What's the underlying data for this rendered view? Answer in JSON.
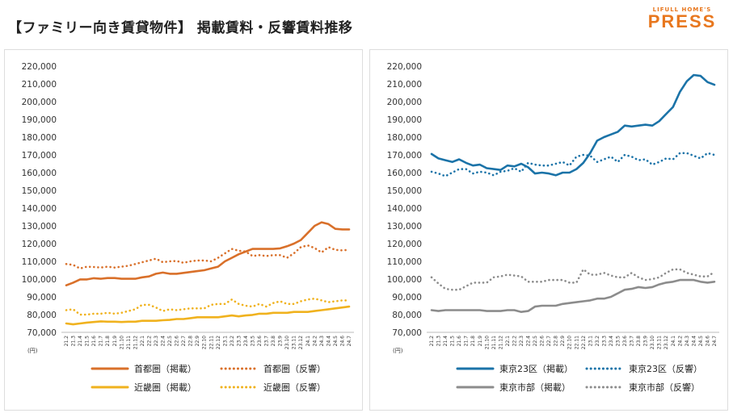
{
  "header": {
    "title": "【ファミリー向き賃貸物件】 掲載賃料・反響賃料推移",
    "logo_top": "LIFULL HOME'S",
    "logo_main": "PRESS"
  },
  "colors": {
    "shutoken": "#d9702a",
    "kinki": "#f0b21e",
    "tokyo23": "#1b73a8",
    "tokyoshi": "#8c8c8c",
    "logo": "#e8771e"
  },
  "chart_data": [
    {
      "type": "line",
      "unit": "(円)",
      "ylim": [
        70000,
        220000
      ],
      "yticks": [
        "70,000",
        "80,000",
        "90,000",
        "100,000",
        "110,000",
        "120,000",
        "130,000",
        "140,000",
        "150,000",
        "160,000",
        "170,000",
        "180,000",
        "190,000",
        "200,000",
        "210,000",
        "220,000"
      ],
      "categories": [
        "21.2",
        "21.3",
        "21.4",
        "21.5",
        "21.6",
        "21.7",
        "21.8",
        "21.9",
        "21.10",
        "21.11",
        "21.12",
        "22.1",
        "22.2",
        "22.3",
        "22.4",
        "22.5",
        "22.6",
        "22.7",
        "22.8",
        "22.9",
        "22.10",
        "22.11",
        "22.12",
        "23.1",
        "23.2",
        "23.3",
        "23.4",
        "23.5",
        "23.6",
        "23.7",
        "23.8",
        "23.9",
        "23.10",
        "23.11",
        "23.12",
        "24.1",
        "24.2",
        "24.3",
        "24.4",
        "24.5",
        "24.6",
        "24.7"
      ],
      "series": [
        {
          "name": "首都圏（掲載）",
          "style": "solid",
          "color_key": "shutoken",
          "values": [
            96500,
            98000,
            99800,
            99800,
            100500,
            100200,
            100600,
            100600,
            100200,
            100200,
            100200,
            101000,
            101500,
            103000,
            103700,
            103000,
            103000,
            103500,
            104000,
            104500,
            105000,
            106000,
            107000,
            110000,
            112000,
            114000,
            115500,
            117000,
            117000,
            117000,
            117000,
            117300,
            118500,
            120000,
            122000,
            126000,
            130000,
            132000,
            131000,
            128300,
            128000,
            128000
          ]
        },
        {
          "name": "首都圏（反響）",
          "style": "dotted",
          "color_key": "shutoken",
          "values": [
            108500,
            108000,
            106000,
            107000,
            106800,
            106500,
            107000,
            106500,
            107000,
            107500,
            108500,
            109500,
            110500,
            111500,
            109500,
            110000,
            110200,
            109200,
            110000,
            110500,
            110500,
            110000,
            112000,
            114500,
            117000,
            116000,
            115500,
            113000,
            113500,
            113000,
            113500,
            113500,
            112000,
            114500,
            118000,
            119000,
            117500,
            115000,
            118000,
            116500,
            116200,
            116500
          ]
        },
        {
          "name": "近畿圏（掲載）",
          "style": "solid",
          "color_key": "kinki",
          "values": [
            75000,
            74500,
            75000,
            75500,
            75800,
            76200,
            76000,
            76000,
            75800,
            76000,
            76000,
            76500,
            76500,
            76500,
            76800,
            77000,
            77500,
            77500,
            78000,
            78500,
            78500,
            78500,
            78500,
            79000,
            79500,
            79000,
            79500,
            79800,
            80500,
            80500,
            81000,
            81000,
            81000,
            81500,
            81500,
            81500,
            82000,
            82500,
            83000,
            83500,
            84000,
            84500
          ]
        },
        {
          "name": "近畿圏（反響）",
          "style": "dotted",
          "color_key": "kinki",
          "values": [
            82500,
            83000,
            80000,
            80000,
            80500,
            80500,
            81000,
            80500,
            81000,
            82000,
            83000,
            85500,
            85500,
            84000,
            82000,
            83000,
            82500,
            83000,
            83500,
            83500,
            83500,
            85500,
            86000,
            86000,
            88500,
            86000,
            85000,
            84500,
            86000,
            84500,
            86500,
            87500,
            86000,
            86000,
            87500,
            88500,
            89000,
            88000,
            87000,
            87500,
            88000,
            88000
          ]
        }
      ],
      "legend": [
        "首都圏（掲載）",
        "首都圏（反響）",
        "近畿圏（掲載）",
        "近畿圏（反響）"
      ]
    },
    {
      "type": "line",
      "unit": "(円)",
      "ylim": [
        70000,
        220000
      ],
      "yticks": [
        "70,000",
        "80,000",
        "90,000",
        "100,000",
        "110,000",
        "120,000",
        "130,000",
        "140,000",
        "150,000",
        "160,000",
        "170,000",
        "180,000",
        "190,000",
        "200,000",
        "210,000",
        "220,000"
      ],
      "categories": [
        "21.2",
        "21.3",
        "21.4",
        "21.5",
        "21.6",
        "21.7",
        "21.8",
        "21.9",
        "21.10",
        "21.11",
        "21.12",
        "22.1",
        "22.2",
        "22.3",
        "22.4",
        "22.5",
        "22.6",
        "22.7",
        "22.8",
        "22.9",
        "22.10",
        "22.11",
        "22.12",
        "23.1",
        "23.2",
        "23.3",
        "23.4",
        "23.5",
        "23.6",
        "23.7",
        "23.8",
        "23.9",
        "23.10",
        "23.11",
        "23.12",
        "24.1",
        "24.2",
        "24.3",
        "24.4",
        "24.5",
        "24.6",
        "24.7"
      ],
      "series": [
        {
          "name": "東京23区（掲載）",
          "style": "solid",
          "color_key": "tokyo23",
          "values": [
            170500,
            168000,
            167000,
            166000,
            167500,
            165500,
            164000,
            164500,
            162500,
            162000,
            161500,
            164000,
            163500,
            165000,
            163000,
            159500,
            160000,
            159500,
            158500,
            160000,
            160000,
            162000,
            165500,
            171000,
            178000,
            180000,
            181500,
            183000,
            186500,
            186000,
            186500,
            187000,
            186500,
            189000,
            193000,
            197000,
            205500,
            211500,
            215000,
            214500,
            211000,
            209500
          ]
        },
        {
          "name": "東京23区（反響）",
          "style": "dotted",
          "color_key": "tokyo23",
          "values": [
            160500,
            159500,
            158000,
            160000,
            162000,
            162000,
            159500,
            160500,
            160000,
            158500,
            160500,
            161000,
            162500,
            160500,
            165500,
            164500,
            164000,
            164000,
            165000,
            166000,
            164000,
            169000,
            170000,
            169500,
            166000,
            167500,
            169000,
            166000,
            170000,
            169000,
            167000,
            167500,
            164500,
            166000,
            168000,
            167500,
            171000,
            171000,
            169500,
            168000,
            171000,
            170000
          ]
        },
        {
          "name": "東京市部（掲載）",
          "style": "solid",
          "color_key": "tokyoshi",
          "values": [
            82500,
            82000,
            82500,
            82500,
            82500,
            82500,
            82500,
            82500,
            82000,
            82000,
            82000,
            82500,
            82500,
            81500,
            82000,
            84500,
            85000,
            85000,
            85000,
            86000,
            86500,
            87000,
            87500,
            88000,
            89000,
            89000,
            90000,
            92000,
            94000,
            94500,
            95500,
            95000,
            95500,
            97000,
            98000,
            98500,
            99500,
            99500,
            99500,
            98500,
            98000,
            98500
          ]
        },
        {
          "name": "東京市部（反響）",
          "style": "dotted",
          "color_key": "tokyoshi",
          "values": [
            101000,
            97500,
            94500,
            94000,
            94000,
            96000,
            98000,
            98000,
            98000,
            101000,
            101500,
            102500,
            102000,
            101500,
            98500,
            98500,
            98500,
            99500,
            99500,
            99500,
            98000,
            98000,
            105500,
            102500,
            102500,
            103500,
            102000,
            101000,
            101000,
            103500,
            101000,
            99500,
            100000,
            101000,
            103500,
            105500,
            105500,
            103500,
            102500,
            101500,
            101500,
            104000
          ]
        }
      ],
      "legend": [
        "東京23区（掲載）",
        "東京23区（反響）",
        "東京市部（掲載）",
        "東京市部（反響）"
      ]
    }
  ]
}
